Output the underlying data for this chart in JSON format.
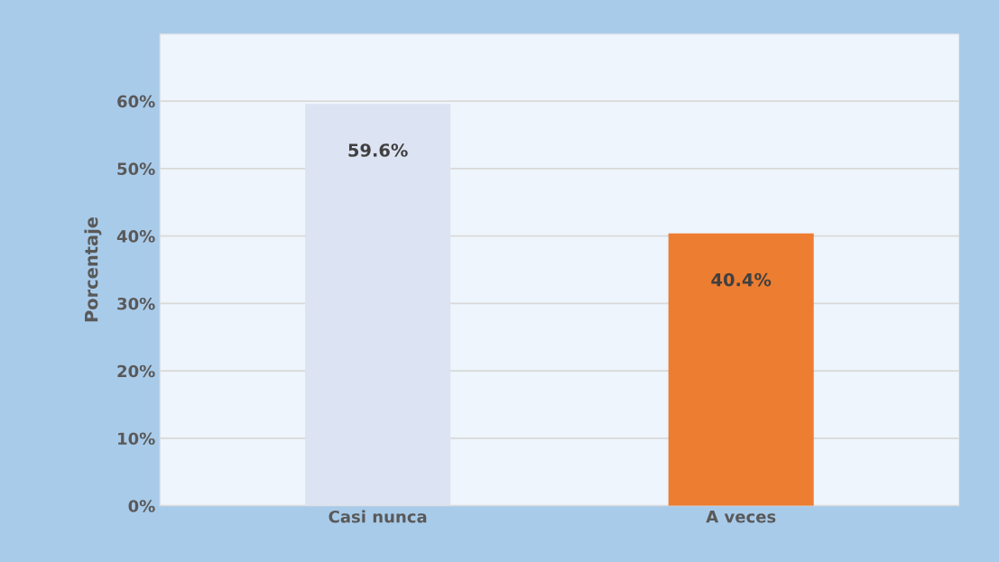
{
  "chart_data": {
    "type": "bar",
    "ylabel": "Porcentaje",
    "categories": [
      "Casi nunca",
      "A veces"
    ],
    "values": [
      59.6,
      40.4
    ],
    "colors": [
      "#dce3f2",
      "#ed7d31"
    ],
    "value_labels": [
      "59.6%",
      "40.4%"
    ],
    "ylim": [
      0,
      70
    ],
    "yticks": [
      {
        "value": 0,
        "label": "0%"
      },
      {
        "value": 10,
        "label": "10%"
      },
      {
        "value": 20,
        "label": "20%"
      },
      {
        "value": 30,
        "label": "30%"
      },
      {
        "value": 40,
        "label": "40%"
      },
      {
        "value": 50,
        "label": "50%"
      },
      {
        "value": 60,
        "label": "60%"
      },
      {
        "value": 70,
        "label": null
      }
    ],
    "grid": "y",
    "legend": false
  }
}
